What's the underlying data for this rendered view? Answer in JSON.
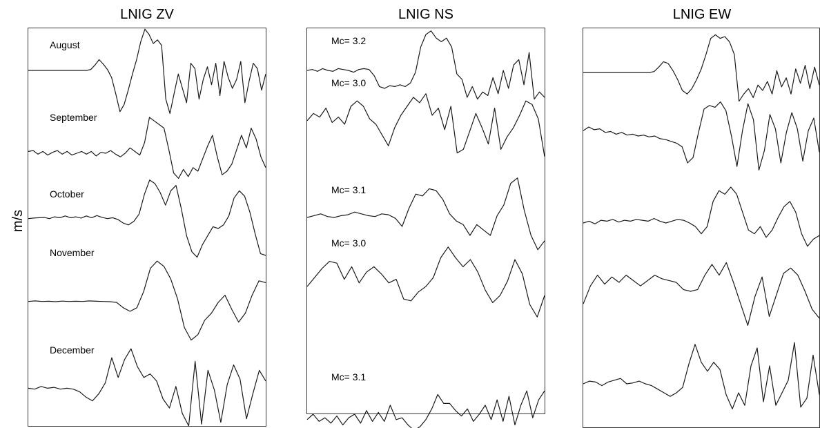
{
  "y_axis_label": "m/s",
  "chart_data": [
    {
      "type": "line",
      "title": "LNIG ZV",
      "ylabel": "m/s",
      "series": [
        {
          "name": "August",
          "y": [
            0,
            0,
            0,
            0,
            0,
            0,
            0,
            0,
            0,
            0,
            0,
            0,
            0,
            0,
            0,
            0.05,
            0.3,
            0.6,
            0.35,
            0.05,
            -0.4,
            -1.3,
            -2.3,
            -1.9,
            -1.1,
            -0.2,
            0.6,
            1.6,
            2.3,
            2.0,
            1.5,
            1.7,
            1.4,
            -1.6,
            -2.4,
            -1.3,
            -0.2,
            -1.0,
            -1.8,
            0.4,
            0.1,
            -1.6,
            -0.5,
            0.2,
            -0.8,
            0.4,
            -1.4,
            0.5,
            -0.4,
            -1.0,
            -0.5,
            0.5,
            -1.8,
            -0.6,
            0.4,
            0.1,
            -1.1,
            -0.2
          ]
        },
        {
          "name": "September",
          "y": [
            0.1,
            0.15,
            -0.05,
            0.1,
            -0.1,
            0.05,
            0.15,
            -0.05,
            0.1,
            -0.1,
            0.0,
            0.1,
            -0.05,
            0.1,
            -0.15,
            0.05,
            0.0,
            0.15,
            -0.05,
            -0.2,
            0.0,
            0.3,
            0.1,
            -0.1,
            0.6,
            2.0,
            1.8,
            1.6,
            1.4,
            0.2,
            -1.1,
            -1.4,
            -0.9,
            -1.3,
            -0.8,
            -1.0,
            -0.3,
            0.4,
            1.0,
            -0.2,
            -1.2,
            -1.0,
            -0.6,
            0.2,
            1.0,
            0.3,
            1.4,
            0.8,
            -0.2,
            -0.8
          ]
        },
        {
          "name": "October",
          "y": [
            0.05,
            0.08,
            0.1,
            0.12,
            0.05,
            0.15,
            0.1,
            0.2,
            0.1,
            0.15,
            0.08,
            0.2,
            0.1,
            0.22,
            0.12,
            0.05,
            0.1,
            0.0,
            -0.2,
            -0.3,
            -0.1,
            0.3,
            1.4,
            2.2,
            2.0,
            1.5,
            0.8,
            1.6,
            1.9,
            0.6,
            -0.9,
            -1.8,
            -2.1,
            -1.4,
            -0.9,
            -0.4,
            -0.5,
            -0.3,
            0.2,
            1.2,
            1.6,
            1.3,
            0.4,
            -0.8,
            -1.9,
            -2.0
          ]
        },
        {
          "name": "November",
          "y": [
            0.05,
            0.08,
            0.05,
            0.06,
            0.04,
            0.07,
            0.05,
            0.06,
            0.05,
            0.08,
            0.06,
            0.05,
            0.04,
            0.0,
            -0.3,
            -0.5,
            -0.3,
            0.6,
            1.9,
            2.3,
            2.0,
            1.3,
            0.2,
            -1.4,
            -2.1,
            -1.8,
            -1.0,
            -0.6,
            0.0,
            0.4,
            -0.4,
            -1.1,
            -0.6,
            0.4,
            1.2,
            1.1
          ]
        },
        {
          "name": "December",
          "y": [
            0.1,
            0.05,
            0.2,
            0.1,
            0.15,
            0.05,
            0.1,
            0.05,
            -0.1,
            -0.4,
            -0.6,
            -0.2,
            0.4,
            1.8,
            0.7,
            1.7,
            2.3,
            1.3,
            0.7,
            0.9,
            0.5,
            -0.5,
            -1.0,
            0.2,
            -1.3,
            -2.0,
            1.6,
            -1.9,
            1.1,
            0.0,
            -1.8,
            0.3,
            1.4,
            0.6,
            -1.6,
            -0.2,
            1.1,
            0.5
          ]
        }
      ]
    },
    {
      "type": "line",
      "title": "LNIG NS",
      "ylabel": "m/s",
      "series": [
        {
          "name": "Mc= 3.2",
          "y": [
            0,
            0.05,
            -0.05,
            0.1,
            0.0,
            -0.05,
            0.1,
            0.05,
            0.0,
            -0.1,
            0.05,
            0.1,
            0.05,
            -0.3,
            -0.9,
            -1.0,
            -0.85,
            -0.9,
            -0.8,
            -0.9,
            -0.7,
            -0.1,
            1.3,
            2.0,
            2.2,
            1.8,
            1.6,
            1.8,
            1.3,
            -0.2,
            -0.5,
            -1.5,
            -0.9,
            -1.6,
            -1.2,
            -1.4,
            -0.4,
            -1.3,
            0.0,
            -1.0,
            0.3,
            0.6,
            -0.8,
            1.0,
            -1.6,
            -1.2,
            -1.5
          ]
        },
        {
          "name": "Mc= 3.0",
          "y": [
            0.2,
            0.6,
            0.4,
            0.9,
            0.1,
            0.4,
            0.0,
            1.0,
            1.3,
            1.0,
            0.3,
            0.0,
            -0.6,
            -1.2,
            -0.2,
            0.5,
            1.0,
            1.5,
            1.2,
            1.7,
            0.5,
            0.9,
            -0.3,
            1.0,
            -1.6,
            -1.4,
            -0.4,
            0.6,
            -0.2,
            -1.1,
            0.9,
            -1.4,
            -0.7,
            -0.2,
            0.5,
            1.3,
            1.1,
            0.3,
            -1.8
          ]
        },
        {
          "name": "Mc= 3.1",
          "y": [
            0.0,
            0.1,
            0.2,
            0.05,
            0.0,
            0.1,
            0.15,
            0.3,
            0.2,
            0.1,
            0.05,
            0.2,
            0.15,
            -0.05,
            -0.5,
            0.5,
            1.3,
            1.2,
            1.6,
            1.5,
            1.0,
            0.2,
            -0.2,
            -0.4,
            -1.0,
            -0.4,
            -0.7,
            -1.0,
            0.1,
            0.7,
            1.9,
            2.2,
            0.4,
            -1.0,
            -1.8,
            -1.3
          ]
        },
        {
          "name": "Mc= 3.0",
          "y": [
            0.0,
            0.5,
            1.0,
            1.4,
            1.3,
            0.4,
            1.1,
            0.2,
            0.8,
            1.1,
            0.7,
            0.2,
            0.4,
            -0.7,
            -0.8,
            -0.3,
            0.0,
            0.5,
            1.6,
            2.2,
            1.6,
            1.1,
            1.5,
            0.8,
            -0.2,
            -0.9,
            -0.5,
            0.3,
            1.5,
            0.7,
            -1.0,
            -1.7,
            -0.5
          ]
        },
        {
          "name": "Mc= 3.1",
          "y": [
            -0.3,
            0.0,
            -0.4,
            -0.2,
            -0.5,
            -0.1,
            -0.6,
            -0.2,
            0.0,
            -0.5,
            0.2,
            -0.4,
            0.1,
            -0.4,
            0.5,
            -0.3,
            -0.2,
            -0.6,
            -0.9,
            -0.7,
            -0.3,
            0.3,
            1.1,
            0.6,
            0.6,
            0.2,
            -0.1,
            0.3,
            -0.4,
            0.0,
            0.5,
            -0.3,
            0.8,
            -0.4,
            1.0,
            -0.6,
            0.5,
            1.3,
            -0.2,
            0.8,
            1.3
          ]
        }
      ]
    },
    {
      "type": "line",
      "title": "LNIG EW",
      "ylabel": "m/s",
      "series": [
        {
          "name": "",
          "y": [
            0,
            0,
            0,
            0,
            0,
            0,
            0,
            0,
            0,
            0,
            0,
            0,
            0,
            0,
            0,
            0.05,
            0.3,
            0.6,
            0.5,
            0.1,
            -0.4,
            -1.0,
            -1.2,
            -0.9,
            -0.4,
            0.2,
            1.0,
            1.9,
            2.1,
            1.9,
            2.0,
            1.7,
            1.0,
            -1.6,
            -1.2,
            -0.9,
            -1.4,
            -0.7,
            -1.0,
            -0.5,
            -1.2,
            0.1,
            -0.8,
            -0.3,
            -1.2,
            0.2,
            -0.6,
            0.4,
            -0.9,
            0.3,
            -0.7
          ]
        },
        {
          "name": "",
          "y": [
            0.3,
            0.5,
            0.35,
            0.4,
            0.2,
            0.25,
            0.1,
            0.2,
            0.05,
            0.1,
            0.0,
            0.05,
            -0.05,
            0.0,
            -0.15,
            -0.2,
            -0.3,
            -0.4,
            -0.6,
            -1.5,
            -1.2,
            0.2,
            1.5,
            1.7,
            1.6,
            1.9,
            1.4,
            0.0,
            -1.7,
            0.3,
            1.8,
            0.9,
            -1.9,
            -0.8,
            1.2,
            0.4,
            -1.5,
            0.2,
            1.3,
            0.4,
            -1.4,
            0.3,
            1.0,
            -0.9
          ]
        },
        {
          "name": "",
          "y": [
            0.0,
            0.1,
            -0.05,
            0.15,
            0.1,
            0.2,
            0.05,
            0.15,
            0.1,
            0.2,
            0.15,
            0.1,
            0.25,
            0.1,
            0.0,
            0.1,
            0.2,
            0.15,
            0.0,
            -0.2,
            -0.6,
            -0.2,
            1.2,
            1.8,
            1.6,
            2.0,
            1.6,
            0.6,
            -0.4,
            -0.6,
            -0.2,
            -0.8,
            -0.4,
            0.3,
            0.9,
            1.2,
            0.6,
            -0.6,
            -1.3,
            -0.9,
            -0.7
          ]
        },
        {
          "name": "",
          "y": [
            -0.7,
            0.3,
            0.9,
            0.4,
            0.8,
            0.5,
            0.9,
            0.6,
            0.3,
            0.6,
            0.9,
            0.7,
            0.6,
            0.5,
            0.1,
            0.0,
            0.1,
            0.9,
            1.5,
            0.9,
            1.6,
            0.5,
            -0.7,
            -1.9,
            -0.3,
            0.8,
            -1.4,
            -0.2,
            1.0,
            1.3,
            0.9,
            0.0,
            -1.0,
            -1.5
          ]
        },
        {
          "name": "",
          "y": [
            0.0,
            0.15,
            0.1,
            -0.1,
            0.1,
            0.2,
            0.3,
            0.0,
            0.05,
            0.15,
            0.0,
            -0.1,
            -0.3,
            -0.5,
            -0.7,
            -0.5,
            -0.2,
            1.1,
            2.2,
            1.2,
            0.7,
            1.2,
            0.8,
            -0.6,
            -1.4,
            -0.5,
            -1.2,
            1.0,
            2.0,
            -1.0,
            1.0,
            -1.2,
            -0.5,
            0.2,
            2.3,
            -1.3,
            -0.8,
            1.6,
            -0.6
          ]
        }
      ]
    }
  ]
}
